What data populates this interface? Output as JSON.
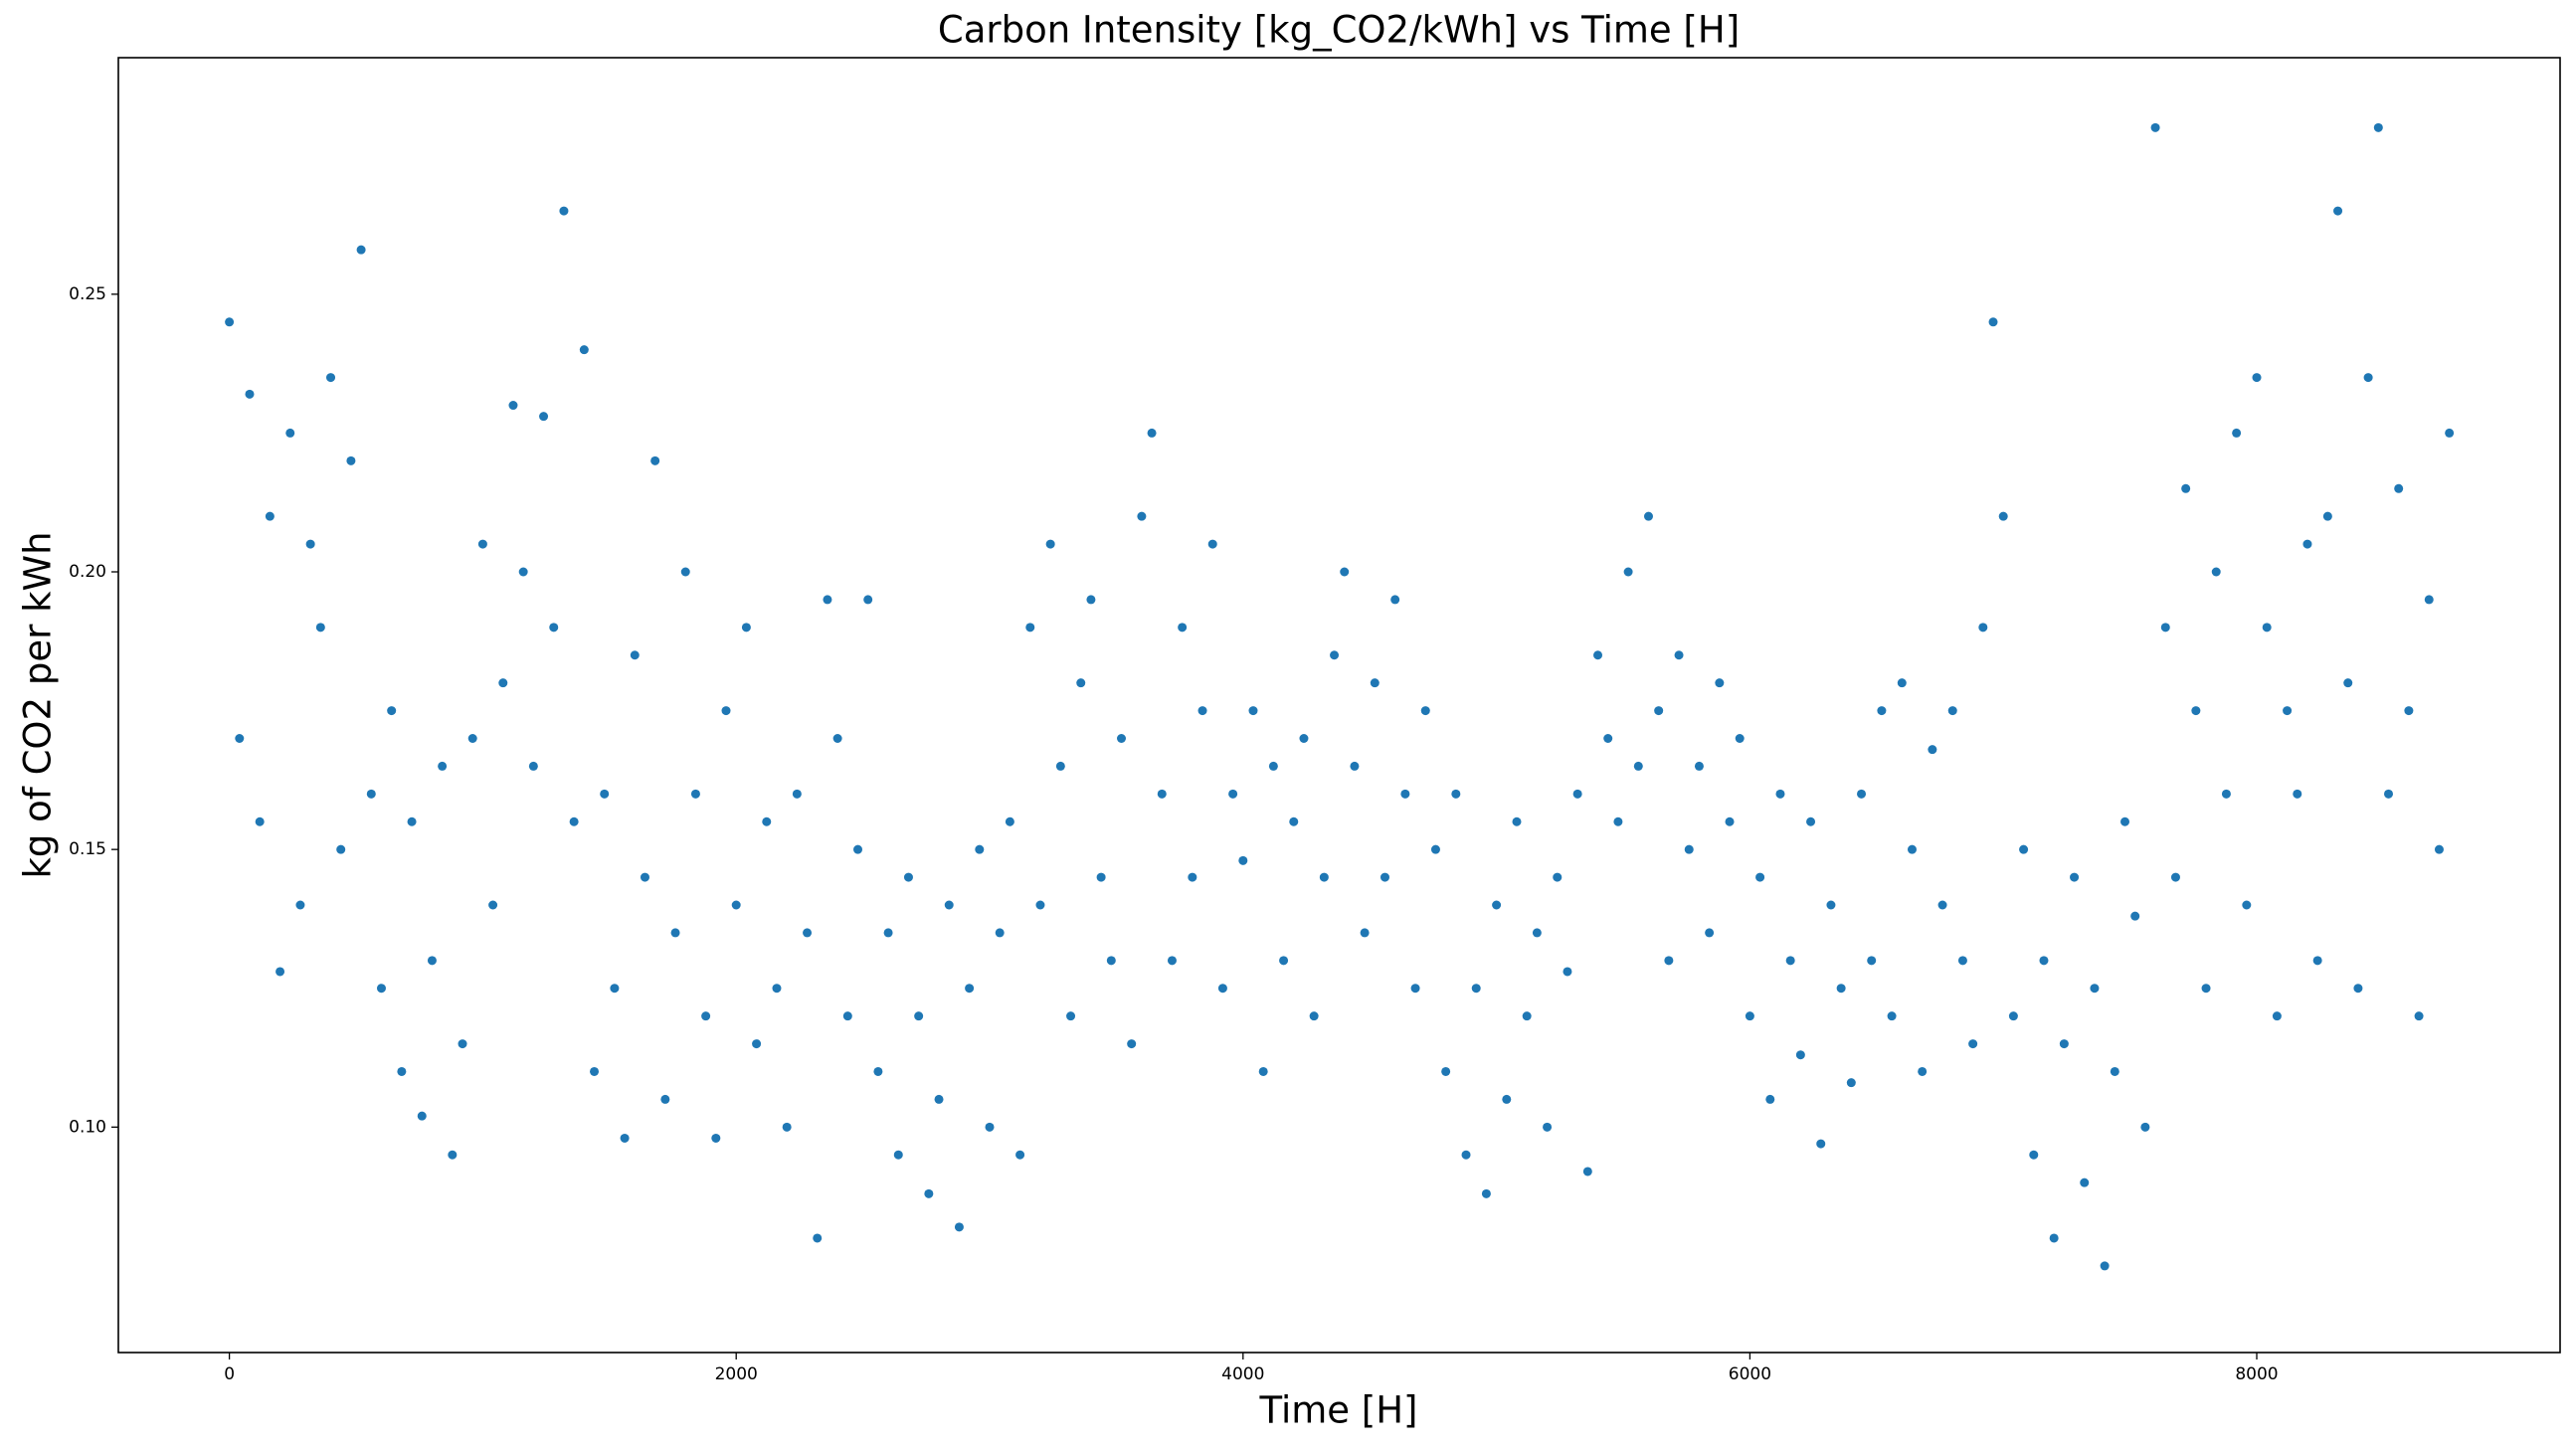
{
  "chart_data": {
    "type": "scatter",
    "title": "Carbon Intensity [kg_CO2/kWh] vs Time [H]",
    "x_label": "Time [H]",
    "y_label": "kg of CO2 per kWh",
    "color": "#1f77b4",
    "grid": false,
    "xlim": [
      -438,
      9197
    ],
    "ylim": [
      0.0594,
      0.2926
    ],
    "xticks": [
      0,
      2000,
      4000,
      6000,
      8000
    ],
    "yticks": [
      {
        "value": 0.1,
        "label": "0.10"
      },
      0.15,
      {
        "value": 0.2,
        "label": "0.20"
      },
      0.25
    ],
    "series": [
      {
        "name": "carbon intensity",
        "color": "#1f77b4",
        "x": [
          0,
          40,
          80,
          120,
          160,
          200,
          240,
          280,
          320,
          360,
          400,
          440,
          480,
          520,
          560,
          600,
          640,
          680,
          720,
          760,
          800,
          840,
          880,
          920,
          960,
          1000,
          1040,
          1080,
          1120,
          1160,
          1200,
          1240,
          1280,
          1320,
          1360,
          1400,
          1440,
          1480,
          1520,
          1560,
          1600,
          1640,
          1680,
          1720,
          1760,
          1800,
          1840,
          1880,
          1920,
          1960,
          2000,
          2040,
          2080,
          2120,
          2160,
          2200,
          2240,
          2280,
          2320,
          2360,
          2400,
          2440,
          2480,
          2520,
          2560,
          2600,
          2640,
          2680,
          2720,
          2760,
          2800,
          2840,
          2880,
          2920,
          2960,
          3000,
          3040,
          3080,
          3120,
          3160,
          3200,
          3240,
          3280,
          3320,
          3360,
          3400,
          3440,
          3480,
          3520,
          3560,
          3600,
          3640,
          3680,
          3720,
          3760,
          3800,
          3840,
          3880,
          3920,
          3960,
          4000,
          4040,
          4080,
          4120,
          4160,
          4200,
          4240,
          4280,
          4320,
          4360,
          4400,
          4440,
          4480,
          4520,
          4560,
          4600,
          4640,
          4680,
          4720,
          4760,
          4800,
          4840,
          4880,
          4920,
          4960,
          5000,
          5040,
          5080,
          5120,
          5160,
          5200,
          5240,
          5280,
          5320,
          5360,
          5400,
          5440,
          5480,
          5520,
          5560,
          5600,
          5640,
          5680,
          5720,
          5760,
          5800,
          5840,
          5880,
          5920,
          5960,
          6000,
          6040,
          6080,
          6120,
          6160,
          6200,
          6240,
          6280,
          6320,
          6360,
          6400,
          6440,
          6480,
          6520,
          6560,
          6600,
          6640,
          6680,
          6720,
          6760,
          6800,
          6840,
          6880,
          6920,
          6960,
          7000,
          7040,
          7080,
          7120,
          7160,
          7200,
          7240,
          7280,
          7320,
          7360,
          7400,
          7440,
          7480,
          7520,
          7560,
          7600,
          7640,
          7680,
          7720,
          7760,
          7800,
          7840,
          7880,
          7920,
          7960,
          8000,
          8040,
          8080,
          8120,
          8160,
          8200,
          8240,
          8280,
          8320,
          8360,
          8400,
          8440,
          8480,
          8520,
          8560,
          8600,
          8640,
          8680,
          8720,
          8760
        ],
        "values": [
          0.245,
          0.17,
          0.232,
          0.155,
          0.21,
          0.128,
          0.225,
          0.14,
          0.205,
          0.19,
          0.235,
          0.15,
          0.22,
          0.258,
          0.16,
          0.125,
          0.175,
          0.11,
          0.155,
          0.102,
          0.13,
          0.165,
          0.095,
          0.115,
          0.17,
          0.205,
          0.14,
          0.18,
          0.23,
          0.2,
          0.165,
          0.228,
          0.19,
          0.265,
          0.155,
          0.24,
          0.11,
          0.16,
          0.125,
          0.098,
          0.185,
          0.145,
          0.22,
          0.105,
          0.135,
          0.2,
          0.16,
          0.12,
          0.098,
          0.175,
          0.14,
          0.19,
          0.115,
          0.155,
          0.125,
          0.1,
          0.16,
          0.135,
          0.08,
          0.195,
          0.17,
          0.12,
          0.15,
          0.195,
          0.11,
          0.135,
          0.095,
          0.145,
          0.12,
          0.088,
          0.105,
          0.14,
          0.082,
          0.125,
          0.15,
          0.1,
          0.135,
          0.155,
          0.095,
          0.19,
          0.14,
          0.205,
          0.165,
          0.12,
          0.18,
          0.195,
          0.145,
          0.13,
          0.17,
          0.115,
          0.21,
          0.225,
          0.16,
          0.13,
          0.19,
          0.145,
          0.175,
          0.205,
          0.125,
          0.16,
          0.148,
          0.175,
          0.11,
          0.165,
          0.13,
          0.155,
          0.17,
          0.12,
          0.145,
          0.185,
          0.2,
          0.165,
          0.135,
          0.18,
          0.145,
          0.195,
          0.16,
          0.125,
          0.175,
          0.15,
          0.11,
          0.16,
          0.095,
          0.125,
          0.088,
          0.14,
          0.105,
          0.155,
          0.12,
          0.135,
          0.1,
          0.145,
          0.128,
          0.16,
          0.092,
          0.185,
          0.17,
          0.155,
          0.2,
          0.165,
          0.21,
          0.175,
          0.13,
          0.185,
          0.15,
          0.165,
          0.135,
          0.18,
          0.155,
          0.17,
          0.12,
          0.145,
          0.105,
          0.16,
          0.13,
          0.113,
          0.155,
          0.097,
          0.14,
          0.125,
          0.108,
          0.16,
          0.13,
          0.175,
          0.12,
          0.18,
          0.15,
          0.11,
          0.168,
          0.14,
          0.175,
          0.13,
          0.115,
          0.19,
          0.245,
          0.21,
          0.12,
          0.15,
          0.095,
          0.13,
          0.08,
          0.115,
          0.145,
          0.09,
          0.125,
          0.075,
          0.11,
          0.155,
          0.138,
          0.1,
          0.28,
          0.19,
          0.145,
          0.215,
          0.175,
          0.125,
          0.2,
          0.16,
          0.225,
          0.14,
          0.235,
          0.19,
          0.12,
          0.175,
          0.16,
          0.205,
          0.13,
          0.21,
          0.265,
          0.18,
          0.125,
          0.235,
          0.28,
          0.16,
          0.215,
          0.175,
          0.12,
          0.195,
          0.15,
          0.225
        ]
      }
    ]
  }
}
